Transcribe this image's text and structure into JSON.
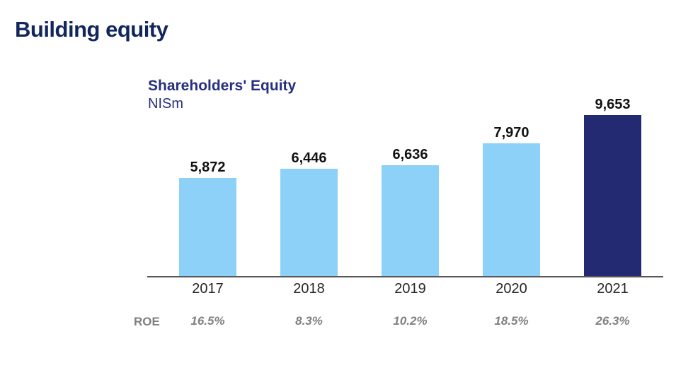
{
  "page": {
    "title": "Building equity"
  },
  "chart_data": {
    "type": "bar",
    "title": "Shareholders' Equity",
    "ylabel": "NISm",
    "categories": [
      "2017",
      "2018",
      "2019",
      "2020",
      "2021"
    ],
    "values": [
      5872,
      6446,
      6636,
      7970,
      9653
    ],
    "value_labels": [
      "5,872",
      "6,446",
      "6,636",
      "7,970",
      "9,653"
    ],
    "ylim": [
      0,
      9653
    ],
    "grid": false,
    "legend": false,
    "highlight_index": 4,
    "bar_color_default": "#8dd1f8",
    "bar_color_highlight": "#242a72",
    "roe_label": "ROE",
    "roe_values": [
      "16.5%",
      "8.3%",
      "10.2%",
      "18.5%",
      "26.3%"
    ],
    "roe_values_numeric": [
      16.5,
      8.3,
      10.2,
      18.5,
      26.3
    ]
  },
  "colors": {
    "page_title": "#12265e",
    "chart_title": "#27307e",
    "axis_line": "#595959",
    "value_label": "#111111",
    "year_label": "#262626",
    "roe_text": "#808080"
  }
}
